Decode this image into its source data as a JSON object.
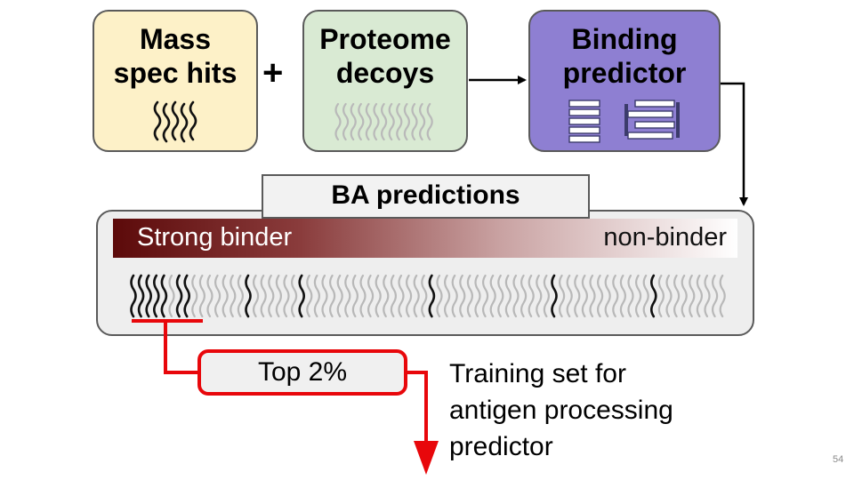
{
  "nodes": {
    "mass_spec": {
      "lines": [
        "Mass",
        "spec hits"
      ],
      "color": "#fdf1c8"
    },
    "decoys": {
      "lines": [
        "Proteome",
        "decoys"
      ],
      "color": "#d9ead3"
    },
    "predictor": {
      "lines": [
        "Binding",
        "predictor"
      ],
      "color": "#8e7fd2"
    }
  },
  "plus": "+",
  "ba": {
    "title": "BA predictions",
    "strong": "Strong binder",
    "non": "non-binder"
  },
  "top": "Top 2%",
  "training": [
    "Training set for",
    "antigen processing",
    "predictor"
  ],
  "page_number": "54",
  "colors": {
    "highlight": "#e8070b",
    "strong": "#5c0a0a"
  }
}
